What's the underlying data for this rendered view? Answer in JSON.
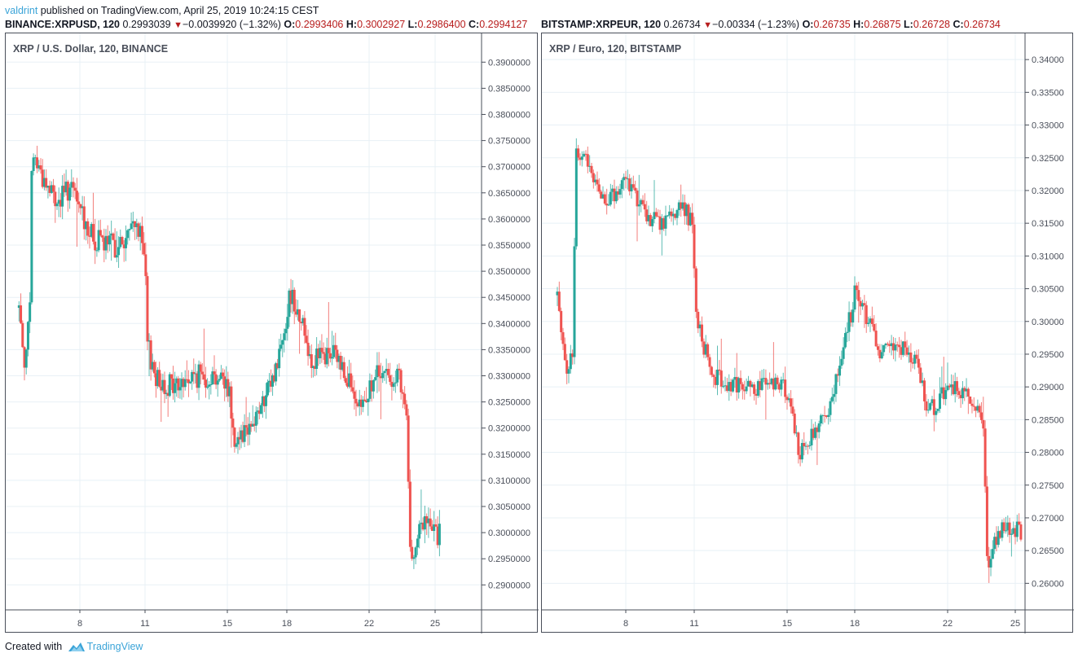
{
  "header": {
    "author": "valdrint",
    "published_text": "published on TradingView.com, April 25, 2019 10:24:15 CEST"
  },
  "left": {
    "symbol": "BINANCE:XRPUSD, 120",
    "last": "0.2993039",
    "change": "−0.0039920 (−1.32%)",
    "o_label": "O:",
    "o": "0.2993406",
    "h_label": "H:",
    "h": "0.3002927",
    "l_label": "L:",
    "l": "0.2986400",
    "c_label": "C:",
    "c": "0.2994127",
    "title": "XRP / U.S. Dollar, 120, BINANCE"
  },
  "right": {
    "symbol": "BITSTAMP:XRPEUR, 120",
    "last": "0.26734",
    "change": "−0.00334 (−1.23%)",
    "o_label": "O:",
    "o": "0.26735",
    "h_label": "H:",
    "h": "0.26875",
    "l_label": "L:",
    "l": "0.26728",
    "c_label": "C:",
    "c": "0.26734",
    "title": "XRP / Euro, 120, BITSTAMP"
  },
  "footer": {
    "created_with": "Created with",
    "brand": "TradingView"
  },
  "colors": {
    "up": "#26a69a",
    "down": "#ef5350",
    "grid": "#e8f0f6",
    "axis_text": "#4a4f5a",
    "accent": "#3ba4d8",
    "value_red": "#b71c1c"
  },
  "chart_data": [
    {
      "type": "candlestick",
      "title": "XRP / U.S. Dollar, 120, BINANCE",
      "xlabel": "",
      "ylabel": "",
      "x_ticks": [
        "8",
        "11",
        "15",
        "18",
        "22",
        "25"
      ],
      "y_ticks": [
        "0.3900000",
        "0.3850000",
        "0.3800000",
        "0.3750000",
        "0.3700000",
        "0.3650000",
        "0.3600000",
        "0.3550000",
        "0.3500000",
        "0.3450000",
        "0.3400000",
        "0.3350000",
        "0.3300000",
        "0.3250000",
        "0.3200000",
        "0.3150000",
        "0.3100000",
        "0.3050000",
        "0.3000000",
        "0.2950000",
        "0.2900000"
      ],
      "ylim": [
        0.2855,
        0.3955
      ],
      "grid": true,
      "approx_close_path": [
        {
          "day": 5.2,
          "price": 0.343
        },
        {
          "day": 5.5,
          "price": 0.332
        },
        {
          "day": 5.7,
          "price": 0.343
        },
        {
          "day": 5.8,
          "price": 0.373
        },
        {
          "day": 6.5,
          "price": 0.366
        },
        {
          "day": 7.0,
          "price": 0.363
        },
        {
          "day": 7.5,
          "price": 0.366
        },
        {
          "day": 8.0,
          "price": 0.362
        },
        {
          "day": 8.6,
          "price": 0.356
        },
        {
          "day": 9.2,
          "price": 0.355
        },
        {
          "day": 10.0,
          "price": 0.355
        },
        {
          "day": 10.6,
          "price": 0.36
        },
        {
          "day": 11.0,
          "price": 0.352
        },
        {
          "day": 11.1,
          "price": 0.336
        },
        {
          "day": 11.6,
          "price": 0.329
        },
        {
          "day": 12.5,
          "price": 0.328
        },
        {
          "day": 13.5,
          "price": 0.33
        },
        {
          "day": 14.5,
          "price": 0.33
        },
        {
          "day": 15.1,
          "price": 0.328
        },
        {
          "day": 15.3,
          "price": 0.318
        },
        {
          "day": 16.2,
          "price": 0.321
        },
        {
          "day": 16.9,
          "price": 0.325
        },
        {
          "day": 17.5,
          "price": 0.332
        },
        {
          "day": 18.2,
          "price": 0.346
        },
        {
          "day": 18.7,
          "price": 0.341
        },
        {
          "day": 19.2,
          "price": 0.333
        },
        {
          "day": 20.3,
          "price": 0.334
        },
        {
          "day": 21.0,
          "price": 0.33
        },
        {
          "day": 21.4,
          "price": 0.322
        },
        {
          "day": 22.3,
          "price": 0.33
        },
        {
          "day": 23.3,
          "price": 0.33
        },
        {
          "day": 23.7,
          "price": 0.322
        },
        {
          "day": 23.85,
          "price": 0.296
        },
        {
          "day": 24.5,
          "price": 0.302
        },
        {
          "day": 25.2,
          "price": 0.2994
        }
      ],
      "last_close": 0.2994127
    },
    {
      "type": "candlestick",
      "title": "XRP / Euro, 120, BITSTAMP",
      "xlabel": "",
      "ylabel": "",
      "x_ticks": [
        "8",
        "11",
        "15",
        "18",
        "22",
        "25"
      ],
      "y_ticks": [
        "0.34000",
        "0.33500",
        "0.33000",
        "0.32500",
        "0.32000",
        "0.31500",
        "0.31000",
        "0.30500",
        "0.30000",
        "0.29500",
        "0.29000",
        "0.28500",
        "0.28000",
        "0.27500",
        "0.27000",
        "0.26500",
        "0.26000"
      ],
      "ylim": [
        0.256,
        0.344
      ],
      "grid": true,
      "approx_close_path": [
        {
          "day": 5.0,
          "price": 0.304
        },
        {
          "day": 5.4,
          "price": 0.292
        },
        {
          "day": 5.7,
          "price": 0.296
        },
        {
          "day": 5.8,
          "price": 0.326
        },
        {
          "day": 6.5,
          "price": 0.323
        },
        {
          "day": 7.2,
          "price": 0.318
        },
        {
          "day": 8.0,
          "price": 0.322
        },
        {
          "day": 8.8,
          "price": 0.316
        },
        {
          "day": 9.5,
          "price": 0.315
        },
        {
          "day": 10.4,
          "price": 0.318
        },
        {
          "day": 10.9,
          "price": 0.315
        },
        {
          "day": 11.1,
          "price": 0.3
        },
        {
          "day": 11.8,
          "price": 0.292
        },
        {
          "day": 12.8,
          "price": 0.29
        },
        {
          "day": 13.8,
          "price": 0.29
        },
        {
          "day": 14.7,
          "price": 0.291
        },
        {
          "day": 15.2,
          "price": 0.287
        },
        {
          "day": 15.5,
          "price": 0.28
        },
        {
          "day": 16.3,
          "price": 0.284
        },
        {
          "day": 16.9,
          "price": 0.286
        },
        {
          "day": 17.5,
          "price": 0.296
        },
        {
          "day": 18.0,
          "price": 0.304
        },
        {
          "day": 18.6,
          "price": 0.3
        },
        {
          "day": 19.0,
          "price": 0.295
        },
        {
          "day": 20.2,
          "price": 0.296
        },
        {
          "day": 20.8,
          "price": 0.292
        },
        {
          "day": 21.1,
          "price": 0.286
        },
        {
          "day": 21.9,
          "price": 0.289
        },
        {
          "day": 22.5,
          "price": 0.29
        },
        {
          "day": 23.3,
          "price": 0.287
        },
        {
          "day": 23.6,
          "price": 0.285
        },
        {
          "day": 23.75,
          "price": 0.263
        },
        {
          "day": 24.3,
          "price": 0.268
        },
        {
          "day": 25.0,
          "price": 0.2685
        },
        {
          "day": 25.3,
          "price": 0.26734
        }
      ],
      "last_close": 0.26734
    }
  ]
}
